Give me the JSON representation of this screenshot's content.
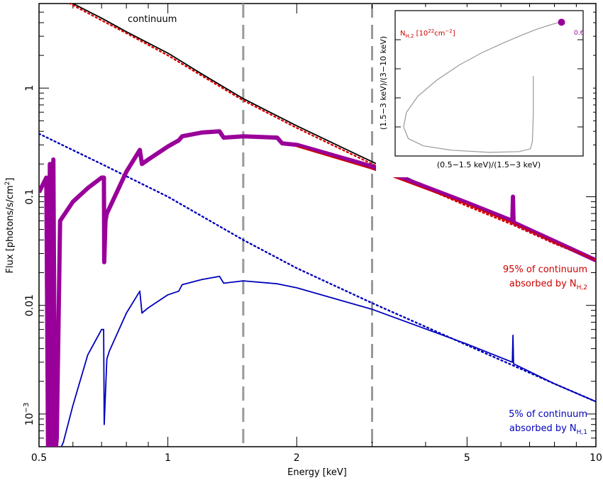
{
  "chart_data": [
    {
      "type": "line",
      "xlabel": "Energy [keV]",
      "ylabel": "Flux [photons/s/cm2]",
      "ylabel_parts": {
        "base": "Flux [photons/s/cm",
        "sup": "2",
        "tail": "]"
      },
      "xscale": "log",
      "yscale": "log",
      "xlim": [
        0.5,
        10
      ],
      "ylim": [
        0.0005,
        6
      ],
      "x_ticks": [
        {
          "value": 0.5,
          "label": "0.5"
        },
        {
          "value": 1,
          "label": "1"
        },
        {
          "value": 2,
          "label": "2"
        },
        {
          "value": 5,
          "label": "5"
        },
        {
          "value": 10,
          "label": "10"
        }
      ],
      "y_ticks": [
        {
          "value": 0.001,
          "label": "10",
          "sup": "−3"
        },
        {
          "value": 0.01,
          "label": "0.01",
          "sup": ""
        },
        {
          "value": 0.1,
          "label": "0.1",
          "sup": ""
        },
        {
          "value": 1,
          "label": "1",
          "sup": ""
        }
      ],
      "vertical_lines": [
        1.5,
        3
      ],
      "series": [
        {
          "color": "#000000",
          "style": "solid",
          "x": [
            0.5,
            0.6,
            0.7,
            0.8,
            1,
            1.2,
            1.5,
            2,
            3,
            4,
            5,
            6.4,
            8,
            10
          ],
          "y": [
            8.8,
            6.0,
            4.4,
            3.3,
            2.1,
            1.35,
            0.8,
            0.45,
            0.21,
            0.125,
            0.085,
            0.057,
            0.038,
            0.026
          ]
        },
        {
          "color": "#dd0000",
          "style": "dotted",
          "x": [
            0.5,
            0.6,
            0.7,
            0.8,
            1,
            1.2,
            1.5,
            2,
            3,
            4,
            5,
            6.4,
            8,
            10
          ],
          "y": [
            8.4,
            5.8,
            4.2,
            3.2,
            2.0,
            1.3,
            0.77,
            0.43,
            0.2,
            0.12,
            0.082,
            0.055,
            0.037,
            0.026
          ]
        },
        {
          "color": "#0000bb",
          "style": "dotted",
          "x": [
            0.5,
            0.7,
            1,
            1.5,
            2,
            3,
            5,
            8,
            10
          ],
          "y": [
            0.38,
            0.2,
            0.1,
            0.04,
            0.022,
            0.0105,
            0.0043,
            0.0019,
            0.0013
          ]
        },
        {
          "color": "#990099",
          "style": "thick",
          "x": [
            0.5,
            0.52,
            0.525,
            0.53,
            0.535,
            0.54,
            0.545,
            0.55,
            0.56,
            0.6,
            0.65,
            0.7,
            0.709,
            0.71,
            0.715,
            0.72,
            0.8,
            0.86,
            0.87,
            0.9,
            1,
            1.06,
            1.08,
            1.2,
            1.32,
            1.35,
            1.5,
            1.8,
            1.85,
            2,
            3,
            5,
            6.38,
            6.4,
            6.42,
            8,
            10
          ],
          "y": [
            0.11,
            0.15,
            0.0004,
            0.2,
            0.0004,
            0.22,
            0.0004,
            0.0006,
            0.06,
            0.09,
            0.12,
            0.15,
            0.15,
            0.025,
            0.06,
            0.07,
            0.17,
            0.27,
            0.2,
            0.22,
            0.29,
            0.33,
            0.36,
            0.39,
            0.4,
            0.35,
            0.36,
            0.35,
            0.31,
            0.3,
            0.19,
            0.088,
            0.06,
            0.1,
            0.058,
            0.039,
            0.026
          ]
        },
        {
          "color": "#cc0000",
          "style": "solid",
          "x": [
            2,
            3,
            5,
            6.4,
            8,
            10
          ],
          "y": [
            0.29,
            0.18,
            0.085,
            0.057,
            0.038,
            0.026
          ]
        },
        {
          "color": "#0000bb",
          "style": "solid",
          "x": [
            0.52,
            0.55,
            0.57,
            0.6,
            0.65,
            0.7,
            0.708,
            0.71,
            0.72,
            0.73,
            0.8,
            0.86,
            0.87,
            0.9,
            1,
            1.06,
            1.08,
            1.2,
            1.32,
            1.35,
            1.5,
            1.8,
            2,
            3,
            5,
            6.38,
            6.4,
            6.42,
            8,
            10
          ],
          "y": [
            0.0004,
            0.0004,
            0.00055,
            0.0012,
            0.0035,
            0.006,
            0.006,
            0.0008,
            0.0032,
            0.0038,
            0.0085,
            0.0135,
            0.0085,
            0.0095,
            0.0125,
            0.0135,
            0.0155,
            0.0173,
            0.0185,
            0.016,
            0.0168,
            0.0158,
            0.0145,
            0.0092,
            0.0044,
            0.003,
            0.0053,
            0.0029,
            0.0019,
            0.0013
          ]
        }
      ],
      "annotations": {
        "continuum": "continuum",
        "red_line1": "95% of continuum",
        "red_line2_prefix": "absorbed by N",
        "red_line2_sub": "H,2",
        "blue_line1": "5% of continuum",
        "blue_line2_prefix": "absorbed by N",
        "blue_line2_sub": "H,1"
      },
      "colors": {
        "purple": "#990099",
        "red": "#cc0000",
        "blue": "#0000bb",
        "gray": "#999999"
      }
    },
    {
      "type": "line",
      "xlabel": "(0.5−1.5 keV)/(1.5−3 keV)",
      "ylabel": "(1.5−3 keV)/(3−10 keV)",
      "label_prefix": "N",
      "label_sub": "H,2",
      "label_mid": " [10",
      "label_sup1": "22",
      "label_mid2": "cm",
      "label_sup2": "−2",
      "label_tail": "]",
      "point_label": "0.6",
      "xlim": [
        0,
        1
      ],
      "ylim": [
        0,
        1
      ],
      "curve_x": [
        0.885,
        0.86,
        0.82,
        0.76,
        0.68,
        0.58,
        0.46,
        0.34,
        0.22,
        0.12,
        0.06,
        0.045,
        0.07,
        0.15,
        0.3,
        0.5,
        0.66,
        0.72,
        0.73,
        0.735,
        0.735
      ],
      "curve_y": [
        0.92,
        0.915,
        0.9,
        0.875,
        0.835,
        0.78,
        0.71,
        0.625,
        0.52,
        0.41,
        0.3,
        0.2,
        0.12,
        0.07,
        0.04,
        0.025,
        0.03,
        0.05,
        0.1,
        0.3,
        0.55
      ],
      "point": [
        0.885,
        0.92
      ]
    }
  ]
}
